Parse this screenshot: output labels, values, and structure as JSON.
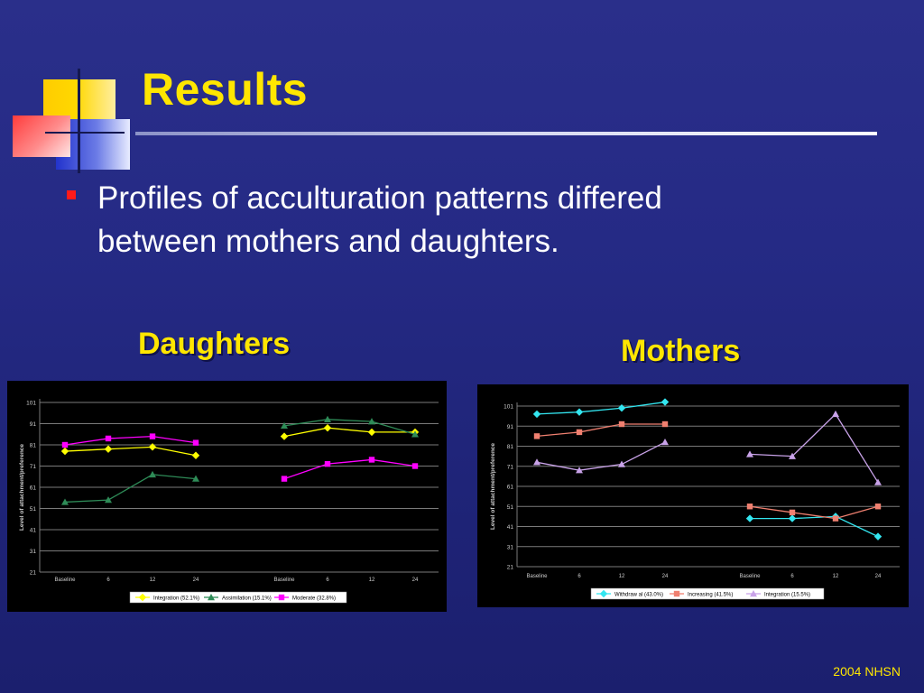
{
  "slide": {
    "title": "Results",
    "bullet": "Profiles of acculturation patterns differed between mothers and daughters.",
    "footer": "2004 NHSN",
    "colors": {
      "title": "#ffe600",
      "bullet": "#ff1a1a",
      "text": "#ffffff"
    }
  },
  "chart_data": [
    {
      "caption": "Daughters",
      "type": "line",
      "ylabel": "Level of attachment/preference",
      "yticks": [
        21,
        31,
        41,
        51,
        61,
        71,
        81,
        91,
        101
      ],
      "ylim": [
        21,
        101
      ],
      "groups": [
        [
          "Baseline",
          "6",
          "12",
          "24"
        ],
        [
          "Baseline",
          "6",
          "12",
          "24"
        ]
      ],
      "grid": true,
      "legend_position": "bottom",
      "series": [
        {
          "name": "Integration  (52.1%)",
          "color": "#ffff00",
          "marker": "diamond",
          "values": [
            [
              78,
              79,
              80,
              76
            ],
            [
              85,
              89,
              87,
              87
            ]
          ]
        },
        {
          "name": "Assimilation (15.1%)",
          "color": "#2e8b57",
          "marker": "triangle",
          "values": [
            [
              54,
              55,
              67,
              65
            ],
            [
              90,
              93,
              92,
              86
            ]
          ]
        },
        {
          "name": "Moderate (32.8%)",
          "color": "#ff00ff",
          "marker": "square",
          "values": [
            [
              81,
              84,
              85,
              82
            ],
            [
              65,
              72,
              74,
              71
            ]
          ]
        }
      ]
    },
    {
      "caption": "Mothers",
      "type": "line",
      "ylabel": "Level of attachment/preference",
      "yticks": [
        21,
        31,
        41,
        51,
        61,
        71,
        81,
        91,
        101
      ],
      "ylim": [
        21,
        101
      ],
      "groups": [
        [
          "Baseline",
          "6",
          "12",
          "24"
        ],
        [
          "Baseline",
          "6",
          "12",
          "24"
        ]
      ],
      "grid": true,
      "legend_position": "bottom",
      "series": [
        {
          "name": "Withdraw al (43.0%)",
          "color": "#33e6f0",
          "marker": "diamond",
          "values": [
            [
              97,
              98,
              100,
              103
            ],
            [
              45,
              45,
              46,
              36
            ]
          ]
        },
        {
          "name": "Increasing  (41.5%)",
          "color": "#f08070",
          "marker": "square",
          "values": [
            [
              86,
              88,
              92,
              92
            ],
            [
              51,
              48,
              45,
              51
            ]
          ]
        },
        {
          "name": "Integration  (15.5%)",
          "color": "#c8a2e8",
          "marker": "triangle",
          "values": [
            [
              73,
              69,
              72,
              83
            ],
            [
              77,
              76,
              97,
              63
            ]
          ]
        }
      ]
    }
  ]
}
